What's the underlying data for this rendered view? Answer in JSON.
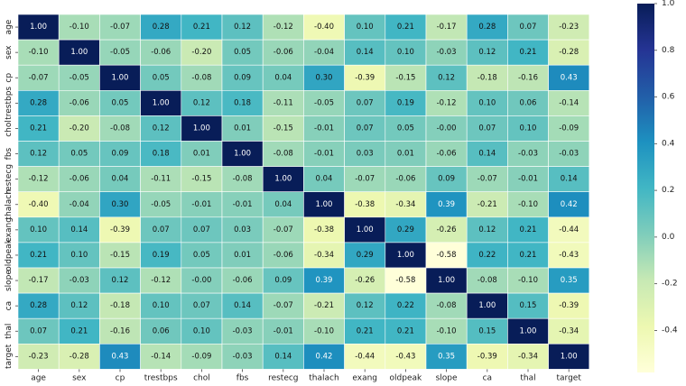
{
  "chart_data": {
    "type": "heatmap",
    "labels": [
      "age",
      "sex",
      "cp",
      "trestbps",
      "chol",
      "fbs",
      "restecg",
      "thalach",
      "exang",
      "oldpeak",
      "slope",
      "ca",
      "thal",
      "target"
    ],
    "colorbar": {
      "ticks": [
        "1.0",
        "0.8",
        "0.6",
        "0.4",
        "0.2",
        "0.0",
        "-0.2",
        "-0.4"
      ],
      "tick_values": [
        1.0,
        0.8,
        0.6,
        0.4,
        0.2,
        0.0,
        -0.2,
        -0.4
      ],
      "vmin": -0.58,
      "vmax": 1.0,
      "colormap": "YlGnBu"
    },
    "values": [
      [
        "1.00",
        "-0.10",
        "-0.07",
        "0.28",
        "0.21",
        "0.12",
        "-0.12",
        "-0.40",
        "0.10",
        "0.21",
        "-0.17",
        "0.28",
        "0.07",
        "-0.23"
      ],
      [
        "-0.10",
        "1.00",
        "-0.05",
        "-0.06",
        "-0.20",
        "0.05",
        "-0.06",
        "-0.04",
        "0.14",
        "0.10",
        "-0.03",
        "0.12",
        "0.21",
        "-0.28"
      ],
      [
        "-0.07",
        "-0.05",
        "1.00",
        "0.05",
        "-0.08",
        "0.09",
        "0.04",
        "0.30",
        "-0.39",
        "-0.15",
        "0.12",
        "-0.18",
        "-0.16",
        "0.43"
      ],
      [
        "0.28",
        "-0.06",
        "0.05",
        "1.00",
        "0.12",
        "0.18",
        "-0.11",
        "-0.05",
        "0.07",
        "0.19",
        "-0.12",
        "0.10",
        "0.06",
        "-0.14"
      ],
      [
        "0.21",
        "-0.20",
        "-0.08",
        "0.12",
        "1.00",
        "0.01",
        "-0.15",
        "-0.01",
        "0.07",
        "0.05",
        "-0.00",
        "0.07",
        "0.10",
        "-0.09"
      ],
      [
        "0.12",
        "0.05",
        "0.09",
        "0.18",
        "0.01",
        "1.00",
        "-0.08",
        "-0.01",
        "0.03",
        "0.01",
        "-0.06",
        "0.14",
        "-0.03",
        "-0.03"
      ],
      [
        "-0.12",
        "-0.06",
        "0.04",
        "-0.11",
        "-0.15",
        "-0.08",
        "1.00",
        "0.04",
        "-0.07",
        "-0.06",
        "0.09",
        "-0.07",
        "-0.01",
        "0.14"
      ],
      [
        "-0.40",
        "-0.04",
        "0.30",
        "-0.05",
        "-0.01",
        "-0.01",
        "0.04",
        "1.00",
        "-0.38",
        "-0.34",
        "0.39",
        "-0.21",
        "-0.10",
        "0.42"
      ],
      [
        "0.10",
        "0.14",
        "-0.39",
        "0.07",
        "0.07",
        "0.03",
        "-0.07",
        "-0.38",
        "1.00",
        "0.29",
        "-0.26",
        "0.12",
        "0.21",
        "-0.44"
      ],
      [
        "0.21",
        "0.10",
        "-0.15",
        "0.19",
        "0.05",
        "0.01",
        "-0.06",
        "-0.34",
        "0.29",
        "1.00",
        "-0.58",
        "0.22",
        "0.21",
        "-0.43"
      ],
      [
        "-0.17",
        "-0.03",
        "0.12",
        "-0.12",
        "-0.00",
        "-0.06",
        "0.09",
        "0.39",
        "-0.26",
        "-0.58",
        "1.00",
        "-0.08",
        "-0.10",
        "0.35"
      ],
      [
        "0.28",
        "0.12",
        "-0.18",
        "0.10",
        "0.07",
        "0.14",
        "-0.07",
        "-0.21",
        "0.12",
        "0.22",
        "-0.08",
        "1.00",
        "0.15",
        "-0.39"
      ],
      [
        "0.07",
        "0.21",
        "-0.16",
        "0.06",
        "0.10",
        "-0.03",
        "-0.01",
        "-0.10",
        "0.21",
        "0.21",
        "-0.10",
        "0.15",
        "1.00",
        "-0.34"
      ],
      [
        "-0.23",
        "-0.28",
        "0.43",
        "-0.14",
        "-0.09",
        "-0.03",
        "0.14",
        "0.42",
        "-0.44",
        "-0.43",
        "0.35",
        "-0.39",
        "-0.34",
        "1.00"
      ]
    ]
  }
}
